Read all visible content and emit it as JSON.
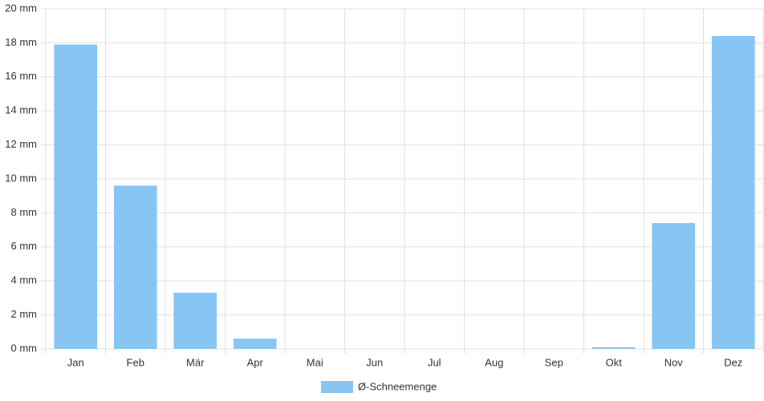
{
  "chart_data": {
    "type": "bar",
    "categories": [
      "Jan",
      "Feb",
      "Mär",
      "Apr",
      "Mai",
      "Jun",
      "Jul",
      "Aug",
      "Sep",
      "Okt",
      "Nov",
      "Dez"
    ],
    "series": [
      {
        "name": "Ø-Schneemenge",
        "color": "#87c5f2",
        "values": [
          17.9,
          9.6,
          3.3,
          0.6,
          0,
          0,
          0,
          0,
          0,
          0.1,
          7.4,
          18.4
        ]
      }
    ],
    "ylim": [
      0,
      20
    ],
    "yticks": [
      {
        "value": 0,
        "label": "0 mm"
      },
      {
        "value": 2,
        "label": "2 mm"
      },
      {
        "value": 4,
        "label": "4 mm"
      },
      {
        "value": 6,
        "label": "6 mm"
      },
      {
        "value": 8,
        "label": "8 mm"
      },
      {
        "value": 10,
        "label": "10 mm"
      },
      {
        "value": 12,
        "label": "12 mm"
      },
      {
        "value": 14,
        "label": "14 mm"
      },
      {
        "value": 16,
        "label": "16 mm"
      },
      {
        "value": 18,
        "label": "18 mm"
      },
      {
        "value": 20,
        "label": "20 mm"
      }
    ],
    "grid": true
  }
}
